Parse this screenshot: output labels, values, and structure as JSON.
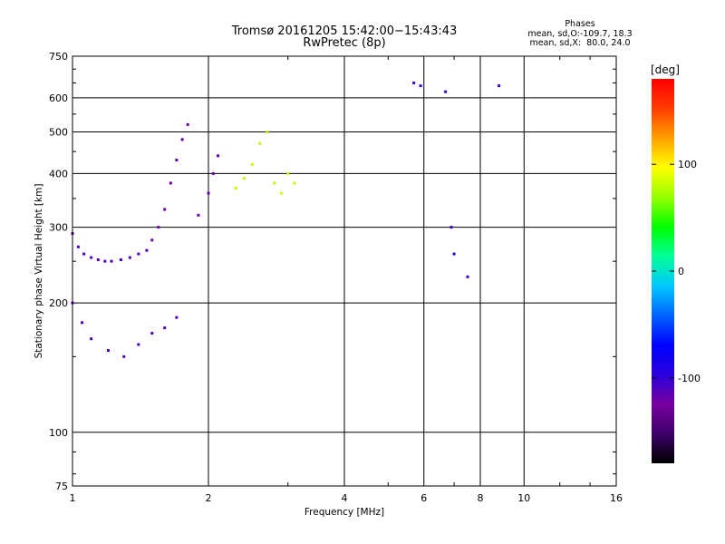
{
  "header": {
    "title_line1": "Tromsø 20161205 15:42:00−15:43:43",
    "title_line2": "RwPretec (8p)",
    "stats_title": "Phases",
    "stats_o": "mean, sd,O:-109.7, 18.3",
    "stats_x": "mean, sd,X:  80.0, 24.0"
  },
  "colors": {
    "background": "#ffffff",
    "axes": "#000000",
    "colormap": [
      "#000000",
      "#3c0069",
      "#7800a0",
      "#2a00dd",
      "#0000ff",
      "#0064ff",
      "#00c8ff",
      "#00ff96",
      "#00ff00",
      "#96ff00",
      "#ffff00",
      "#ffa000",
      "#ff3c00",
      "#ff0000"
    ]
  },
  "chart_data": {
    "type": "scatter",
    "title": "Tromsø 20161205 15:42:00−15:43:43",
    "subtitle": "RwPretec (8p)",
    "xlabel": "Frequency [MHz]",
    "ylabel": "Stationary phase Virtual Height [km]",
    "x_scale": "log2",
    "y_scale": "log",
    "xlim": [
      1,
      16
    ],
    "ylim": [
      75,
      750
    ],
    "x_ticks": [
      1,
      2,
      4,
      6,
      8,
      10,
      16
    ],
    "y_ticks": [
      75,
      100,
      200,
      300,
      400,
      500,
      600,
      750
    ],
    "grid": true,
    "colorbar": {
      "label": "[deg]",
      "range": [
        -180,
        180
      ],
      "ticks": [
        100,
        0,
        -100
      ]
    },
    "series": [
      {
        "name": "",
        "cluster": "F trace low-frequency leg",
        "x": [
          1.0,
          1.03,
          1.06,
          1.1,
          1.14,
          1.18,
          1.22,
          1.28,
          1.34,
          1.4,
          1.46
        ],
        "y": [
          290,
          270,
          260,
          255,
          252,
          250,
          250,
          252,
          255,
          260,
          265
        ],
        "phase_deg": -110
      },
      {
        "name": "",
        "cluster": "F trace upper branch",
        "x": [
          1.5,
          1.55,
          1.6,
          1.65,
          1.7,
          1.75,
          1.8,
          1.9,
          2.0,
          2.05,
          2.1
        ],
        "y": [
          280,
          300,
          330,
          380,
          430,
          480,
          520,
          320,
          360,
          400,
          440
        ],
        "phase_deg": -120
      },
      {
        "name": "",
        "cluster": "Es / E trace",
        "x": [
          1.0,
          1.05,
          1.1,
          1.2,
          1.3,
          1.4,
          1.5,
          1.6,
          1.7
        ],
        "y": [
          200,
          180,
          165,
          155,
          150,
          160,
          170,
          175,
          185
        ],
        "phase_deg": -110
      },
      {
        "name": "",
        "cluster": "X trace",
        "x": [
          2.3,
          2.4,
          2.5,
          2.6,
          2.7,
          2.8,
          2.9,
          3.0,
          3.1
        ],
        "y": [
          370,
          390,
          420,
          470,
          500,
          380,
          360,
          400,
          380
        ],
        "phase_deg": 80
      },
      {
        "name": "",
        "cluster": "isolated returns 6-9 MHz",
        "x": [
          5.7,
          5.9,
          6.7,
          6.9,
          7.0,
          7.5,
          8.8
        ],
        "y": [
          650,
          640,
          620,
          300,
          260,
          230,
          640
        ],
        "phase_deg": -100
      }
    ]
  }
}
